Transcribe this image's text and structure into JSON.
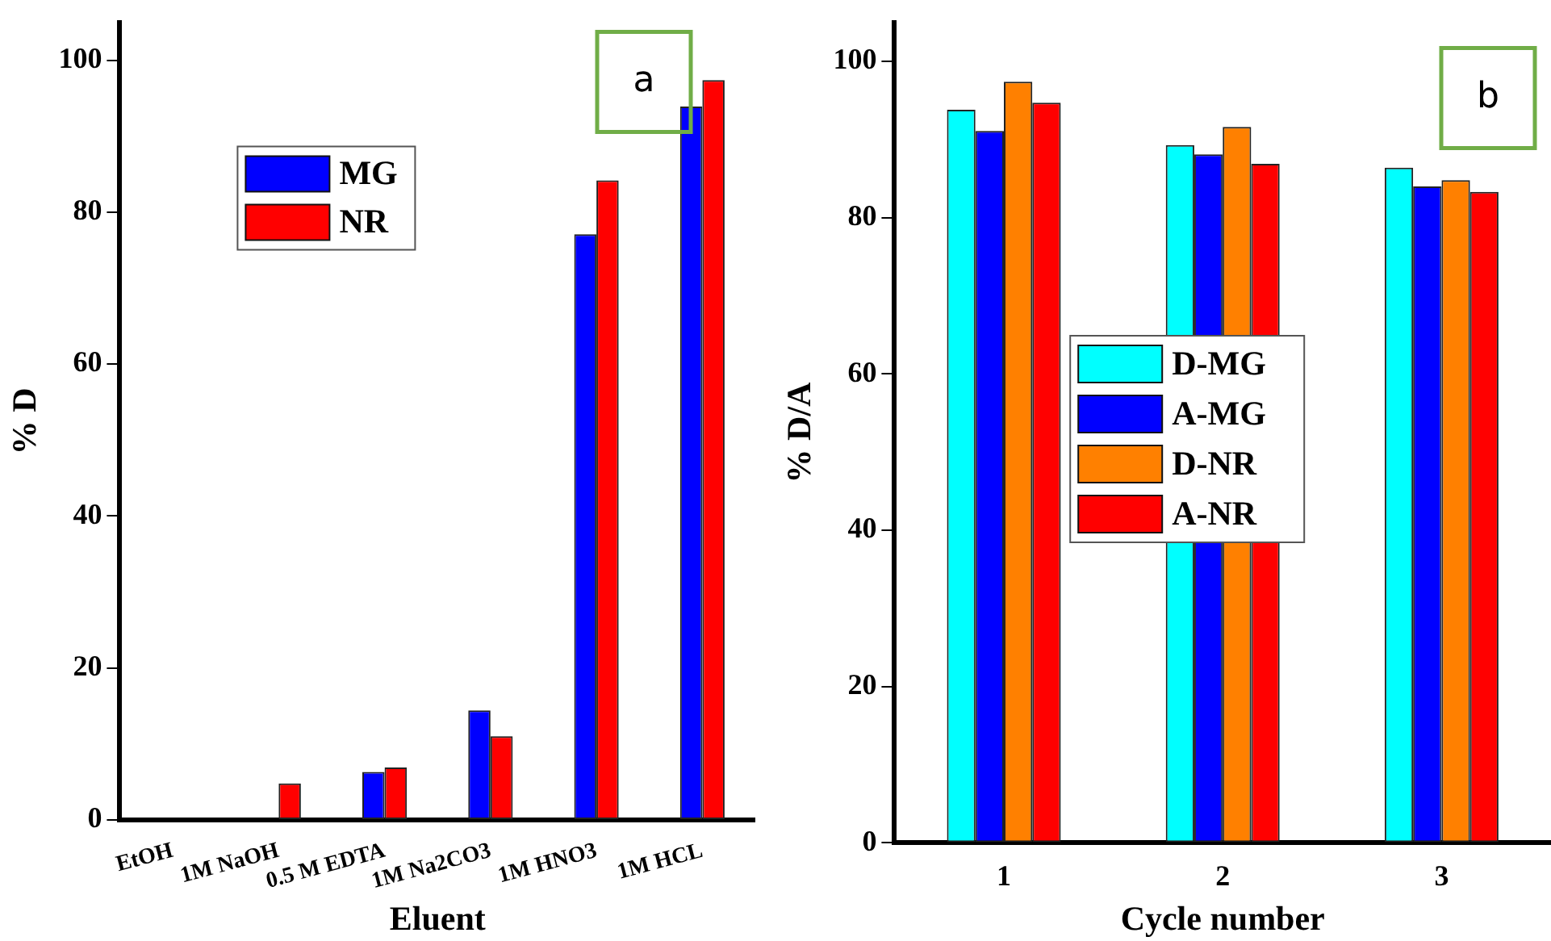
{
  "chart_data": [
    {
      "type": "bar",
      "ylabel": "% D",
      "xlabel": "Eluent",
      "categories": [
        "EtOH",
        "1M NaOH",
        "0.5 M EDTA",
        "1M Na2CO3",
        "1M HNO3",
        "1M HCL"
      ],
      "series": [
        {
          "name": "MG",
          "color": "#0000ff",
          "values": [
            0,
            0,
            6.3,
            14.4,
            77.1,
            93.9
          ]
        },
        {
          "name": "NR",
          "color": "#ff0000",
          "values": [
            0,
            4.8,
            6.9,
            11.0,
            84.2,
            97.4
          ]
        }
      ],
      "ylim": [
        0,
        105
      ],
      "yticks": [
        0,
        20,
        40,
        60,
        80,
        100
      ],
      "legend": "top left",
      "grid": false,
      "annotations": [
        "a"
      ]
    },
    {
      "type": "bar",
      "ylabel": "% D/A",
      "xlabel": "Cycle number",
      "categories": [
        "1",
        "2",
        "3"
      ],
      "series": [
        {
          "name": "D-MG",
          "color": "#00ffff",
          "values": [
            93.8,
            89.3,
            86.4
          ]
        },
        {
          "name": "A-MG",
          "color": "#0000ff",
          "values": [
            91.1,
            88.1,
            84.0
          ]
        },
        {
          "name": "D-NR",
          "color": "#ff8000",
          "values": [
            97.4,
            91.6,
            84.8
          ]
        },
        {
          "name": "A-NR",
          "color": "#ff0000",
          "values": [
            94.7,
            86.9,
            83.3
          ]
        }
      ],
      "ylim": [
        0,
        105
      ],
      "yticks": [
        0,
        20,
        40,
        60,
        80,
        100
      ],
      "legend": "center",
      "grid": false,
      "annotations": [
        "b"
      ]
    }
  ]
}
